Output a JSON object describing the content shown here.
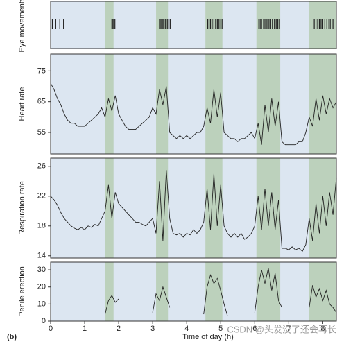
{
  "shaded_periods": [
    [
      1.6,
      1.85
    ],
    [
      3.1,
      3.45
    ],
    [
      4.55,
      5.05
    ],
    [
      6.05,
      6.75
    ],
    [
      7.6,
      8.4
    ]
  ],
  "panel_label": "(b)",
  "watermark": "CSDN @头发没了还会再长",
  "chart_data": [
    {
      "type": "event",
      "ylabel": "Eye movements",
      "color": "#222222",
      "xlim": [
        0,
        8.4
      ],
      "x": [
        0.05,
        0.15,
        0.27,
        0.38,
        1.8,
        1.83,
        1.86,
        1.89,
        3.2,
        3.24,
        3.27,
        3.3,
        3.33,
        3.37,
        3.4,
        3.44,
        3.48,
        3.52,
        4.62,
        4.66,
        4.7,
        4.75,
        4.8,
        4.85,
        4.9,
        4.95,
        5.0,
        5.04,
        6.12,
        6.16,
        6.2,
        6.26,
        6.3,
        6.36,
        6.42,
        6.47,
        6.52,
        6.58,
        6.63,
        6.68,
        6.73,
        7.75,
        7.8,
        7.85,
        7.9,
        7.95,
        8.0,
        8.06,
        8.12,
        8.18,
        8.22,
        8.3
      ]
    },
    {
      "type": "line",
      "ylabel": "Heart rate",
      "color": "#222222",
      "xlim": [
        0,
        8.4
      ],
      "ylim": [
        48,
        80.5
      ],
      "yticks": [
        55,
        65,
        75
      ],
      "x": [
        0,
        0.1,
        0.2,
        0.3,
        0.4,
        0.5,
        0.6,
        0.7,
        0.8,
        0.9,
        1,
        1.1,
        1.2,
        1.3,
        1.4,
        1.5,
        1.6,
        1.7,
        1.8,
        1.9,
        2,
        2.1,
        2.2,
        2.3,
        2.4,
        2.5,
        2.6,
        2.7,
        2.8,
        2.9,
        3,
        3.1,
        3.2,
        3.3,
        3.4,
        3.5,
        3.6,
        3.7,
        3.8,
        3.9,
        4,
        4.1,
        4.2,
        4.3,
        4.4,
        4.5,
        4.6,
        4.7,
        4.8,
        4.9,
        5,
        5.1,
        5.2,
        5.3,
        5.4,
        5.5,
        5.6,
        5.7,
        5.8,
        5.9,
        6,
        6.1,
        6.2,
        6.3,
        6.4,
        6.5,
        6.6,
        6.7,
        6.8,
        6.9,
        7,
        7.1,
        7.2,
        7.3,
        7.4,
        7.5,
        7.6,
        7.7,
        7.8,
        7.9,
        8,
        8.1,
        8.2,
        8.3,
        8.4
      ],
      "values": [
        71,
        69,
        66,
        64,
        61,
        59,
        58,
        58,
        57,
        57,
        57,
        58,
        59,
        60,
        61,
        63,
        60,
        66,
        62,
        67,
        61,
        59,
        57,
        56,
        56,
        56,
        57,
        58,
        59,
        60,
        63,
        61,
        69,
        64,
        70,
        55,
        54,
        53,
        54,
        53,
        54,
        53,
        54,
        55,
        55,
        57,
        63,
        58,
        69,
        60,
        68,
        55,
        54,
        53,
        53,
        52,
        53,
        53,
        54,
        55,
        53,
        58,
        51,
        64,
        55,
        66,
        57,
        65,
        52,
        51,
        51,
        51,
        51,
        52,
        52,
        55,
        60,
        57,
        66,
        59,
        67,
        61,
        66,
        63,
        65
      ]
    },
    {
      "type": "line",
      "ylabel": "Respiration rate",
      "color": "#222222",
      "xlim": [
        0,
        8.4
      ],
      "ylim": [
        13.7,
        27.1
      ],
      "yticks": [
        14,
        18,
        22,
        26
      ],
      "x": [
        0,
        0.1,
        0.2,
        0.3,
        0.4,
        0.5,
        0.6,
        0.7,
        0.8,
        0.9,
        1,
        1.1,
        1.2,
        1.3,
        1.4,
        1.5,
        1.6,
        1.7,
        1.8,
        1.9,
        2,
        2.1,
        2.2,
        2.3,
        2.4,
        2.5,
        2.6,
        2.7,
        2.8,
        2.9,
        3,
        3.1,
        3.2,
        3.3,
        3.4,
        3.5,
        3.6,
        3.7,
        3.8,
        3.9,
        4,
        4.1,
        4.2,
        4.3,
        4.4,
        4.5,
        4.6,
        4.7,
        4.8,
        4.9,
        5,
        5.1,
        5.2,
        5.3,
        5.4,
        5.5,
        5.6,
        5.7,
        5.8,
        5.9,
        6,
        6.1,
        6.2,
        6.3,
        6.4,
        6.5,
        6.6,
        6.7,
        6.8,
        6.9,
        7,
        7.1,
        7.2,
        7.3,
        7.4,
        7.5,
        7.6,
        7.7,
        7.8,
        7.9,
        8,
        8.1,
        8.2,
        8.3,
        8.4
      ],
      "values": [
        22,
        21.5,
        20.8,
        19.8,
        19,
        18.5,
        18,
        17.7,
        17.5,
        17.8,
        17.5,
        18,
        17.8,
        18.2,
        18,
        19,
        20,
        23.5,
        19,
        22.5,
        21,
        20.5,
        20,
        19.5,
        19,
        18.5,
        18.5,
        18.2,
        18,
        18.5,
        19,
        17,
        24,
        16,
        25.5,
        19,
        17,
        16.8,
        17,
        16.5,
        17,
        16.8,
        17.5,
        17,
        17.5,
        18.5,
        23,
        17.5,
        25,
        18,
        23.5,
        18,
        17,
        16.5,
        17,
        16.5,
        17,
        16.2,
        16.5,
        17,
        18,
        22,
        17.5,
        23,
        18,
        22.5,
        17.5,
        21.5,
        15,
        15,
        14.8,
        15.2,
        14.8,
        15,
        14.6,
        15.5,
        19,
        16,
        21,
        17,
        22,
        18,
        22.5,
        19.5,
        24.5
      ]
    },
    {
      "type": "line",
      "ylabel": "Penile erection",
      "xlabel": "Time of day (h)",
      "color": "#222222",
      "xlim": [
        0,
        8.4
      ],
      "xticks": [
        0,
        1,
        2,
        3,
        4,
        5,
        6,
        7,
        8
      ],
      "ylim": [
        0,
        34.5
      ],
      "yticks": [
        0,
        10,
        20,
        30
      ],
      "x": [
        0,
        0.1,
        0.2,
        0.3,
        0.4,
        0.5,
        0.6,
        0.7,
        0.8,
        0.9,
        1,
        1.1,
        1.2,
        1.3,
        1.4,
        1.5,
        1.6,
        1.7,
        1.8,
        1.9,
        2,
        2.1,
        2.2,
        2.3,
        2.4,
        2.5,
        2.6,
        2.7,
        2.8,
        2.9,
        3,
        3.1,
        3.2,
        3.3,
        3.4,
        3.5,
        3.6,
        3.7,
        3.8,
        3.9,
        4,
        4.1,
        4.2,
        4.3,
        4.4,
        4.5,
        4.6,
        4.7,
        4.8,
        4.9,
        5,
        5.1,
        5.2,
        5.3,
        5.4,
        5.5,
        5.6,
        5.7,
        5.8,
        5.9,
        6,
        6.1,
        6.2,
        6.3,
        6.4,
        6.5,
        6.6,
        6.7,
        6.8,
        6.9,
        7,
        7.1,
        7.2,
        7.3,
        7.4,
        7.5,
        7.6,
        7.7,
        7.8,
        7.9,
        8,
        8.1,
        8.2,
        8.3,
        8.4
      ],
      "values": [
        null,
        null,
        null,
        null,
        null,
        null,
        null,
        null,
        null,
        null,
        null,
        null,
        null,
        null,
        null,
        null,
        4,
        12,
        15,
        11,
        13,
        null,
        null,
        null,
        null,
        null,
        null,
        null,
        null,
        null,
        5,
        16,
        12,
        20,
        14,
        8,
        null,
        null,
        null,
        null,
        null,
        null,
        null,
        null,
        null,
        4,
        20,
        27,
        22,
        25,
        18,
        10,
        3,
        null,
        null,
        null,
        null,
        null,
        null,
        null,
        5,
        20,
        30,
        22,
        31,
        18,
        28,
        12,
        8,
        null,
        null,
        null,
        null,
        null,
        null,
        null,
        8,
        21,
        14,
        19,
        12,
        18,
        10,
        8,
        5
      ]
    }
  ]
}
